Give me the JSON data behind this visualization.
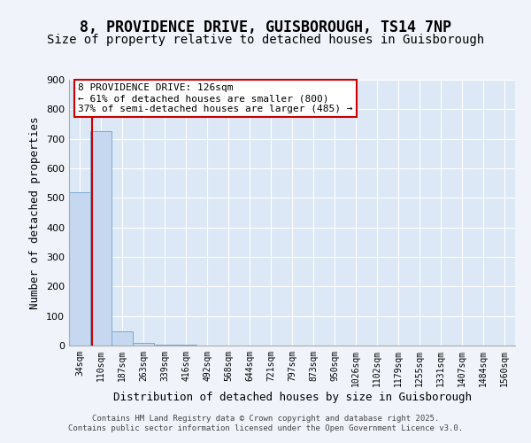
{
  "title_line1": "8, PROVIDENCE DRIVE, GUISBOROUGH, TS14 7NP",
  "title_line2": "Size of property relative to detached houses in Guisborough",
  "xlabel": "Distribution of detached houses by size in Guisborough",
  "ylabel": "Number of detached properties",
  "bar_labels": [
    "34sqm",
    "110sqm",
    "187sqm",
    "263sqm",
    "339sqm",
    "416sqm",
    "492sqm",
    "568sqm",
    "644sqm",
    "721sqm",
    "797sqm",
    "873sqm",
    "950sqm",
    "1026sqm",
    "1102sqm",
    "1179sqm",
    "1255sqm",
    "1331sqm",
    "1407sqm",
    "1484sqm",
    "1560sqm"
  ],
  "bar_values": [
    520,
    726,
    48,
    10,
    2,
    2,
    1,
    1,
    1,
    1,
    1,
    1,
    1,
    1,
    1,
    1,
    1,
    1,
    1,
    1,
    1
  ],
  "bar_color": "#c5d8f0",
  "bar_edge_color": "#7aaad0",
  "bar_width": 1.0,
  "vline_x": 0.6,
  "vline_color": "#cc0000",
  "ylim": [
    0,
    900
  ],
  "yticks": [
    0,
    100,
    200,
    300,
    400,
    500,
    600,
    700,
    800,
    900
  ],
  "annotation_title": "8 PROVIDENCE DRIVE: 126sqm",
  "annotation_line1": "← 61% of detached houses are smaller (800)",
  "annotation_line2": "37% of semi-detached houses are larger (485) →",
  "annotation_box_color": "#ffffff",
  "annotation_border_color": "#cc0000",
  "bg_color": "#f0f4fa",
  "plot_bg_color": "#dce8f5",
  "footer_line1": "Contains HM Land Registry data © Crown copyright and database right 2025.",
  "footer_line2": "Contains public sector information licensed under the Open Government Licence v3.0.",
  "grid_color": "#ffffff",
  "title_fontsize": 12,
  "subtitle_fontsize": 10,
  "label_fontsize": 9,
  "tick_fontsize": 8
}
